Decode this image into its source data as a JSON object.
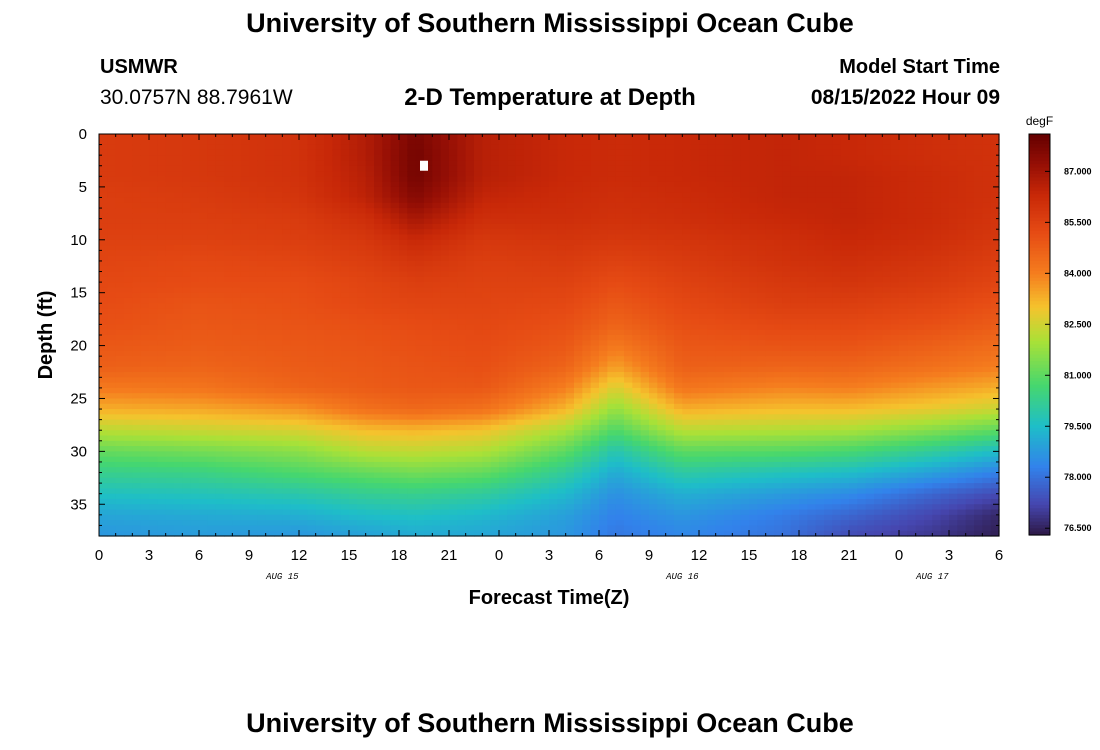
{
  "header": {
    "title": "University of Southern Mississippi Ocean Cube",
    "station": "USMWR",
    "coordinates": "30.0757N  88.7961W",
    "subtitle": "2-D Temperature at Depth",
    "model_start_label": "Model Start Time",
    "model_start_value": "08/15/2022 Hour 09"
  },
  "footer": {
    "title": "University of Southern Mississippi Ocean Cube"
  },
  "chart_data": {
    "type": "heatmap",
    "title": "2-D Temperature at Depth",
    "xlabel": "Forecast Time(Z)",
    "ylabel": "Depth (ft)",
    "x_tick_labels": [
      "0",
      "3",
      "6",
      "9",
      "12",
      "15",
      "18",
      "21",
      "0",
      "3",
      "6",
      "9",
      "12",
      "15",
      "18",
      "21",
      "0",
      "3",
      "6"
    ],
    "date_labels": [
      {
        "label": "AUG 15",
        "hour": 11
      },
      {
        "label": "AUG 16",
        "hour": 35
      },
      {
        "label": "AUG 17",
        "hour": 50
      }
    ],
    "x_range_hours": [
      0,
      54
    ],
    "y_tick_labels": [
      "0",
      "5",
      "10",
      "15",
      "20",
      "25",
      "30",
      "35"
    ],
    "ylim": [
      0,
      38
    ],
    "colorbar": {
      "unit": "degF",
      "tick_labels": [
        "87.000",
        "85.500",
        "84.000",
        "82.500",
        "81.000",
        "79.500",
        "78.000",
        "76.500"
      ],
      "range": [
        76.3,
        88.1
      ]
    },
    "grid_columns_depth_ft": [
      0,
      2,
      4,
      6,
      8,
      10,
      12,
      14,
      16,
      18,
      20,
      22,
      24,
      26,
      28,
      30,
      32,
      34,
      36,
      38
    ],
    "profiles": [
      {
        "hour": 0,
        "temps": [
          85.7,
          85.7,
          85.7,
          85.6,
          85.6,
          85.5,
          85.4,
          85.3,
          85.2,
          85.1,
          84.9,
          84.7,
          84.1,
          83.3,
          82.2,
          81.1,
          80.3,
          79.6,
          79.0,
          78.7
        ]
      },
      {
        "hour": 6,
        "temps": [
          85.8,
          85.8,
          85.8,
          85.7,
          85.6,
          85.5,
          85.3,
          85.2,
          85.0,
          84.9,
          84.8,
          84.6,
          84.2,
          83.4,
          82.4,
          81.3,
          80.4,
          79.7,
          79.1,
          78.8
        ]
      },
      {
        "hour": 12,
        "temps": [
          86.0,
          86.0,
          86.0,
          85.9,
          85.7,
          85.6,
          85.4,
          85.2,
          85.1,
          85.0,
          84.9,
          84.8,
          84.6,
          83.7,
          82.6,
          81.6,
          80.8,
          79.9,
          79.2,
          78.7
        ]
      },
      {
        "hour": 16,
        "temps": [
          86.7,
          86.7,
          86.6,
          86.5,
          86.1,
          85.8,
          85.6,
          85.4,
          85.3,
          85.1,
          85.0,
          84.9,
          84.8,
          84.3,
          83.1,
          82.2,
          81.1,
          80.2,
          79.5,
          78.9
        ]
      },
      {
        "hour": 19,
        "temps": [
          87.7,
          87.8,
          87.8,
          87.5,
          86.9,
          86.3,
          85.9,
          85.6,
          85.4,
          85.2,
          85.1,
          85.0,
          84.9,
          84.5,
          83.2,
          82.3,
          81.3,
          80.3,
          79.6,
          79.1
        ]
      },
      {
        "hour": 23,
        "temps": [
          86.6,
          86.6,
          86.6,
          86.4,
          86.1,
          85.8,
          85.6,
          85.5,
          85.4,
          85.3,
          85.2,
          85.1,
          84.9,
          84.3,
          83.0,
          82.1,
          81.1,
          80.1,
          79.4,
          79.0
        ]
      },
      {
        "hour": 28,
        "temps": [
          86.3,
          86.3,
          86.3,
          86.2,
          86.1,
          85.9,
          85.7,
          85.5,
          85.3,
          85.1,
          84.9,
          84.6,
          84.0,
          83.2,
          82.0,
          81.0,
          80.1,
          79.4,
          78.9,
          78.7
        ]
      },
      {
        "hour": 31,
        "temps": [
          86.2,
          86.2,
          86.2,
          86.1,
          86.0,
          85.8,
          85.5,
          85.2,
          84.9,
          84.6,
          84.1,
          83.5,
          82.6,
          81.7,
          80.8,
          79.8,
          79.1,
          78.6,
          78.3,
          78.1
        ]
      },
      {
        "hour": 35,
        "temps": [
          86.3,
          86.3,
          86.3,
          86.2,
          86.1,
          85.9,
          85.7,
          85.5,
          85.3,
          85.1,
          84.9,
          84.7,
          84.2,
          83.3,
          82.2,
          81.0,
          80.0,
          79.2,
          78.7,
          78.4
        ]
      },
      {
        "hour": 41,
        "temps": [
          86.4,
          86.4,
          86.4,
          86.4,
          86.3,
          86.1,
          86.0,
          85.8,
          85.6,
          85.3,
          85.0,
          84.6,
          83.9,
          83.1,
          82.1,
          80.9,
          79.7,
          78.8,
          78.2,
          78.0
        ]
      },
      {
        "hour": 45,
        "temps": [
          86.3,
          86.3,
          86.4,
          86.4,
          86.4,
          86.3,
          86.1,
          85.9,
          85.6,
          85.3,
          85.0,
          84.6,
          84.0,
          83.1,
          82.0,
          80.7,
          79.5,
          78.5,
          77.8,
          77.3
        ]
      },
      {
        "hour": 50,
        "temps": [
          86.1,
          86.1,
          86.2,
          86.2,
          86.2,
          86.1,
          85.9,
          85.7,
          85.4,
          85.1,
          84.7,
          84.3,
          83.6,
          82.8,
          81.5,
          80.1,
          78.9,
          77.8,
          77.2,
          76.9
        ]
      },
      {
        "hour": 54,
        "temps": [
          86.0,
          86.0,
          86.0,
          86.0,
          85.9,
          85.8,
          85.6,
          85.4,
          85.1,
          84.8,
          84.4,
          84.0,
          83.3,
          82.4,
          81.0,
          79.5,
          78.3,
          77.3,
          76.6,
          76.4
        ]
      }
    ],
    "marker": {
      "hour": 19.5,
      "depth_ft": 3
    }
  }
}
